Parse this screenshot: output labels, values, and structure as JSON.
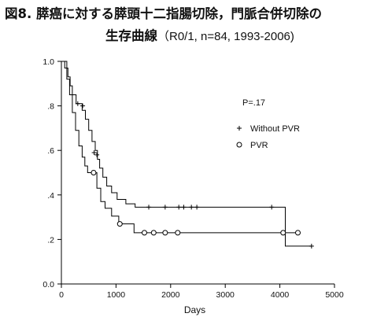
{
  "title_line1": "図8. 膵癌に対する膵頭十二指腸切除，門脈合併切除の",
  "title_line2_main": "生存曲線",
  "title_line2_sub": "（R0/1, n=84, 1993-2006)",
  "chart_data": {
    "type": "line",
    "subtype": "kaplan-meier",
    "xlabel": "Days",
    "ylabel": "",
    "xlim": [
      0,
      5000
    ],
    "ylim": [
      0,
      1.0
    ],
    "x_ticks": [
      0,
      1000,
      2000,
      3000,
      4000,
      5000
    ],
    "x_tick_labels": [
      "0",
      "1000",
      "2000",
      "3000",
      "4000",
      "5000"
    ],
    "y_ticks": [
      0,
      0.2,
      0.4,
      0.6,
      0.8,
      1.0
    ],
    "y_tick_labels": [
      "0.0",
      ".2",
      ".4",
      ".6",
      ".8",
      "1.0"
    ],
    "grid": false,
    "annotation": "P=.17",
    "legend_position": "right",
    "series": [
      {
        "name": "Without PVR",
        "marker": "plus",
        "color": "#000000",
        "steps": [
          [
            0,
            1.0
          ],
          [
            60,
            1.0
          ],
          [
            60,
            0.97
          ],
          [
            120,
            0.97
          ],
          [
            120,
            0.93
          ],
          [
            160,
            0.93
          ],
          [
            160,
            0.89
          ],
          [
            200,
            0.89
          ],
          [
            200,
            0.85
          ],
          [
            270,
            0.85
          ],
          [
            270,
            0.81
          ],
          [
            380,
            0.81
          ],
          [
            380,
            0.78
          ],
          [
            440,
            0.78
          ],
          [
            440,
            0.74
          ],
          [
            500,
            0.74
          ],
          [
            500,
            0.69
          ],
          [
            560,
            0.69
          ],
          [
            560,
            0.64
          ],
          [
            620,
            0.64
          ],
          [
            620,
            0.6
          ],
          [
            660,
            0.6
          ],
          [
            660,
            0.56
          ],
          [
            700,
            0.56
          ],
          [
            700,
            0.52
          ],
          [
            760,
            0.52
          ],
          [
            760,
            0.48
          ],
          [
            830,
            0.48
          ],
          [
            830,
            0.44
          ],
          [
            920,
            0.44
          ],
          [
            920,
            0.41
          ],
          [
            1020,
            0.41
          ],
          [
            1020,
            0.38
          ],
          [
            1180,
            0.38
          ],
          [
            1180,
            0.36
          ],
          [
            1350,
            0.36
          ],
          [
            1350,
            0.345
          ],
          [
            4100,
            0.345
          ],
          [
            4100,
            0.17
          ],
          [
            4580,
            0.17
          ]
        ],
        "censored": [
          [
            300,
            0.81
          ],
          [
            390,
            0.8
          ],
          [
            600,
            0.59
          ],
          [
            650,
            0.58
          ],
          [
            1600,
            0.345
          ],
          [
            1900,
            0.345
          ],
          [
            2150,
            0.345
          ],
          [
            2240,
            0.345
          ],
          [
            2380,
            0.345
          ],
          [
            2480,
            0.345
          ],
          [
            3850,
            0.345
          ],
          [
            4580,
            0.17
          ]
        ]
      },
      {
        "name": "PVR",
        "marker": "circle",
        "color": "#000000",
        "steps": [
          [
            0,
            1.0
          ],
          [
            100,
            1.0
          ],
          [
            100,
            0.92
          ],
          [
            150,
            0.92
          ],
          [
            150,
            0.85
          ],
          [
            200,
            0.85
          ],
          [
            200,
            0.77
          ],
          [
            260,
            0.77
          ],
          [
            260,
            0.69
          ],
          [
            320,
            0.69
          ],
          [
            320,
            0.62
          ],
          [
            380,
            0.62
          ],
          [
            380,
            0.57
          ],
          [
            430,
            0.57
          ],
          [
            430,
            0.53
          ],
          [
            480,
            0.53
          ],
          [
            480,
            0.5
          ],
          [
            650,
            0.5
          ],
          [
            650,
            0.43
          ],
          [
            720,
            0.43
          ],
          [
            720,
            0.37
          ],
          [
            800,
            0.37
          ],
          [
            800,
            0.34
          ],
          [
            920,
            0.34
          ],
          [
            920,
            0.305
          ],
          [
            1050,
            0.305
          ],
          [
            1050,
            0.27
          ],
          [
            1330,
            0.27
          ],
          [
            1330,
            0.23
          ],
          [
            4080,
            0.23
          ],
          [
            4080,
            0.23
          ],
          [
            4330,
            0.23
          ]
        ],
        "censored": [
          [
            590,
            0.5
          ],
          [
            1070,
            0.27
          ],
          [
            1520,
            0.23
          ],
          [
            1690,
            0.23
          ],
          [
            1900,
            0.23
          ],
          [
            2130,
            0.23
          ],
          [
            4060,
            0.23
          ],
          [
            4330,
            0.23
          ]
        ]
      }
    ]
  }
}
